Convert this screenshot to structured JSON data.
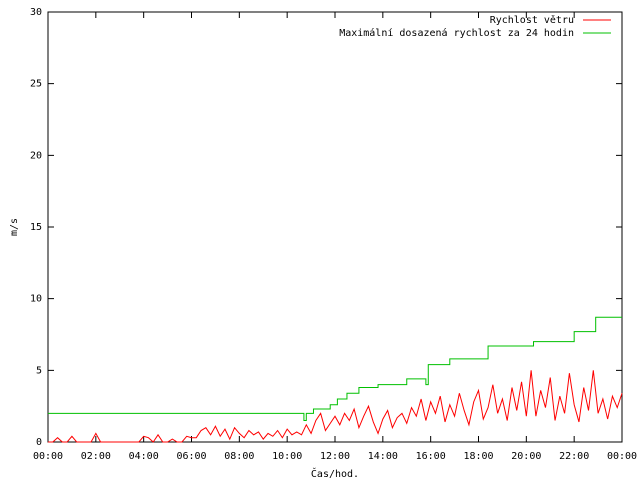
{
  "chart_data": {
    "type": "line",
    "xlabel": "Čas/hod.",
    "ylabel": "m/s",
    "xlim": [
      0,
      24
    ],
    "ylim": [
      0,
      30
    ],
    "xticks": [
      {
        "value": 0,
        "label": "00:00"
      },
      {
        "value": 2,
        "label": "02:00"
      },
      {
        "value": 4,
        "label": "04:00"
      },
      {
        "value": 6,
        "label": "06:00"
      },
      {
        "value": 8,
        "label": "08:00"
      },
      {
        "value": 10,
        "label": "10:00"
      },
      {
        "value": 12,
        "label": "12:00"
      },
      {
        "value": 14,
        "label": "14:00"
      },
      {
        "value": 16,
        "label": "16:00"
      },
      {
        "value": 18,
        "label": "18:00"
      },
      {
        "value": 20,
        "label": "20:00"
      },
      {
        "value": 22,
        "label": "22:00"
      },
      {
        "value": 24,
        "label": "00:00"
      }
    ],
    "yticks": [
      0,
      5,
      10,
      15,
      20,
      25,
      30
    ],
    "legend": "top-right",
    "series": [
      {
        "name": "Rychlost větru",
        "color": "#ff0000",
        "x": [
          0,
          0.2,
          0.4,
          0.6,
          0.8,
          1,
          1.2,
          1.4,
          1.6,
          1.8,
          2,
          2.2,
          2.4,
          2.6,
          2.8,
          3,
          3.2,
          3.4,
          3.6,
          3.8,
          4,
          4.2,
          4.4,
          4.6,
          4.8,
          5,
          5.2,
          5.4,
          5.6,
          5.8,
          6,
          6.2,
          6.4,
          6.6,
          6.8,
          7,
          7.2,
          7.4,
          7.6,
          7.8,
          8,
          8.2,
          8.4,
          8.6,
          8.8,
          9,
          9.2,
          9.4,
          9.6,
          9.8,
          10,
          10.2,
          10.4,
          10.6,
          10.8,
          11,
          11.2,
          11.4,
          11.6,
          11.8,
          12,
          12.2,
          12.4,
          12.6,
          12.8,
          13,
          13.2,
          13.4,
          13.6,
          13.8,
          14,
          14.2,
          14.4,
          14.6,
          14.8,
          15,
          15.2,
          15.4,
          15.6,
          15.8,
          16,
          16.2,
          16.4,
          16.6,
          16.8,
          17,
          17.2,
          17.4,
          17.6,
          17.8,
          18,
          18.2,
          18.4,
          18.6,
          18.8,
          19,
          19.2,
          19.4,
          19.6,
          19.8,
          20,
          20.2,
          20.4,
          20.6,
          20.8,
          21,
          21.2,
          21.4,
          21.6,
          21.8,
          22,
          22.2,
          22.4,
          22.6,
          22.8,
          23,
          23.2,
          23.4,
          23.6,
          23.8,
          24
        ],
        "values": [
          0,
          0,
          0.3,
          0,
          0,
          0.4,
          0,
          0,
          0,
          0,
          0.6,
          0,
          0,
          0,
          0,
          0,
          0,
          0,
          0,
          0,
          0.4,
          0.3,
          0,
          0.5,
          0,
          0,
          0.2,
          0,
          0,
          0.4,
          0.3,
          0.3,
          0.8,
          1.0,
          0.5,
          1.1,
          0.4,
          0.9,
          0.2,
          1.0,
          0.6,
          0.3,
          0.8,
          0.5,
          0.7,
          0.2,
          0.6,
          0.4,
          0.8,
          0.3,
          0.9,
          0.5,
          0.7,
          0.5,
          1.2,
          0.6,
          1.5,
          2.0,
          0.8,
          1.3,
          1.8,
          1.2,
          2.0,
          1.5,
          2.3,
          1.0,
          1.8,
          2.5,
          1.4,
          0.6,
          1.6,
          2.2,
          1.0,
          1.7,
          2.0,
          1.3,
          2.4,
          1.8,
          3.0,
          1.5,
          2.8,
          2.0,
          3.2,
          1.4,
          2.6,
          1.8,
          3.4,
          2.2,
          1.2,
          2.8,
          3.6,
          1.6,
          2.4,
          4.0,
          2.0,
          3.0,
          1.5,
          3.8,
          2.2,
          4.2,
          1.8,
          5.0,
          1.8,
          3.6,
          2.4,
          4.5,
          1.5,
          3.2,
          2.0,
          4.8,
          2.6,
          1.4,
          3.8,
          2.2,
          5.0,
          2.0,
          3.0,
          1.6,
          3.2,
          2.4,
          3.4
        ]
      },
      {
        "name": "Maximální dosazená rychlost za 24 hodin",
        "color": "#00c000",
        "x": [
          0,
          10.7,
          10.7,
          10.8,
          10.8,
          11.1,
          11.1,
          11.8,
          11.8,
          12.1,
          12.1,
          12.5,
          12.5,
          13,
          13,
          13.8,
          13.8,
          15,
          15,
          15.8,
          15.8,
          15.9,
          15.9,
          16.8,
          16.8,
          18.4,
          18.4,
          20.3,
          20.3,
          22,
          22,
          22.9,
          22.9,
          24
        ],
        "values": [
          2,
          2,
          1.5,
          1.5,
          2,
          2,
          2.3,
          2.3,
          2.6,
          2.6,
          3,
          3,
          3.4,
          3.4,
          3.8,
          3.8,
          4,
          4,
          4.4,
          4.4,
          4,
          4,
          5.4,
          5.4,
          5.8,
          5.8,
          6.7,
          6.7,
          7,
          7,
          7.7,
          7.7,
          8.7,
          8.7
        ]
      }
    ]
  }
}
